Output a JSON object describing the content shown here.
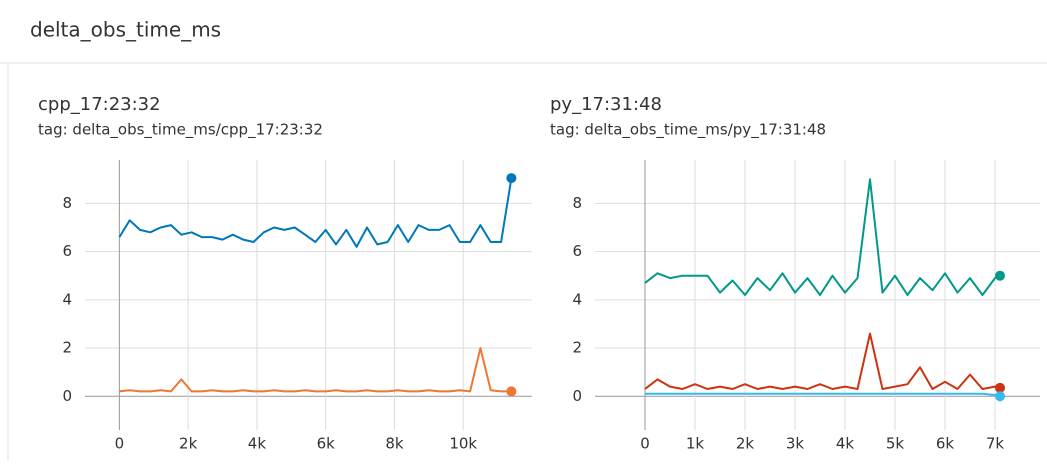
{
  "header": {
    "title": "delta_obs_time_ms"
  },
  "chart_data": [
    {
      "type": "line",
      "title": "cpp_17:23:32",
      "subtitle": "tag: delta_obs_time_ms/cpp_17:23:32",
      "x": [
        0,
        300,
        600,
        900,
        1200,
        1500,
        1800,
        2100,
        2400,
        2700,
        3000,
        3300,
        3600,
        3900,
        4200,
        4500,
        4800,
        5100,
        5400,
        5700,
        6000,
        6300,
        6600,
        6900,
        7200,
        7500,
        7800,
        8100,
        8400,
        8700,
        9000,
        9300,
        9600,
        9900,
        10200,
        10500,
        10800,
        11100,
        11400
      ],
      "series": [
        {
          "color": "#0077bb",
          "values": [
            6.6,
            7.3,
            6.9,
            6.8,
            7.0,
            7.1,
            6.7,
            6.8,
            6.6,
            6.6,
            6.5,
            6.7,
            6.5,
            6.4,
            6.8,
            7.0,
            6.9,
            7.0,
            6.7,
            6.4,
            6.9,
            6.3,
            6.9,
            6.2,
            7.0,
            6.3,
            6.4,
            7.1,
            6.4,
            7.1,
            6.9,
            6.9,
            7.1,
            6.4,
            6.4,
            7.1,
            6.4,
            6.4,
            9.05
          ]
        },
        {
          "color": "#ee7733",
          "values": [
            0.2,
            0.25,
            0.2,
            0.2,
            0.25,
            0.2,
            0.7,
            0.2,
            0.2,
            0.25,
            0.2,
            0.2,
            0.25,
            0.2,
            0.2,
            0.25,
            0.2,
            0.2,
            0.25,
            0.2,
            0.2,
            0.25,
            0.2,
            0.2,
            0.25,
            0.2,
            0.2,
            0.25,
            0.2,
            0.2,
            0.25,
            0.2,
            0.2,
            0.25,
            0.2,
            2.0,
            0.25,
            0.2,
            0.2
          ]
        }
      ],
      "xlim": [
        -1000,
        12000
      ],
      "ylim": [
        -1.4,
        9.8
      ],
      "xticks": [
        0,
        {
          "value": 2000,
          "label": "2k"
        },
        {
          "value": 4000,
          "label": "4k"
        },
        {
          "value": 6000,
          "label": "6k"
        },
        {
          "value": 8000,
          "label": "8k"
        },
        {
          "value": 10000,
          "label": "10k"
        }
      ],
      "yticks": [
        0,
        2,
        4,
        6,
        8
      ],
      "grid": true
    },
    {
      "type": "line",
      "title": "py_17:31:48",
      "subtitle": "tag: delta_obs_time_ms/py_17:31:48",
      "x": [
        0,
        250,
        500,
        750,
        1000,
        1250,
        1500,
        1750,
        2000,
        2250,
        2500,
        2750,
        3000,
        3250,
        3500,
        3750,
        4000,
        4250,
        4500,
        4750,
        5000,
        5250,
        5500,
        5750,
        6000,
        6250,
        6500,
        6750,
        7000,
        7100
      ],
      "series": [
        {
          "color": "#009988",
          "values": [
            4.7,
            5.1,
            4.9,
            5.0,
            5.0,
            5.0,
            4.3,
            4.8,
            4.2,
            4.9,
            4.4,
            5.1,
            4.3,
            4.9,
            4.2,
            5.0,
            4.3,
            4.9,
            9.0,
            4.3,
            5.0,
            4.2,
            4.9,
            4.4,
            5.1,
            4.3,
            4.9,
            4.2,
            4.9,
            5.0
          ]
        },
        {
          "color": "#cc3311",
          "values": [
            0.3,
            0.7,
            0.4,
            0.3,
            0.5,
            0.3,
            0.4,
            0.3,
            0.5,
            0.3,
            0.4,
            0.3,
            0.4,
            0.3,
            0.5,
            0.3,
            0.4,
            0.3,
            2.6,
            0.3,
            0.4,
            0.5,
            1.2,
            0.3,
            0.6,
            0.3,
            0.9,
            0.3,
            0.4,
            0.35
          ]
        },
        {
          "color": "#33bbee",
          "values": [
            0.1,
            0.1,
            0.1,
            0.1,
            0.1,
            0.1,
            0.1,
            0.1,
            0.1,
            0.1,
            0.1,
            0.1,
            0.1,
            0.1,
            0.1,
            0.1,
            0.1,
            0.1,
            0.1,
            0.1,
            0.1,
            0.1,
            0.1,
            0.1,
            0.1,
            0.1,
            0.1,
            0.1,
            0.05,
            0.0
          ]
        }
      ],
      "xlim": [
        -1000,
        7900
      ],
      "ylim": [
        -1.4,
        9.8
      ],
      "xticks": [
        0,
        {
          "value": 1000,
          "label": "1k"
        },
        {
          "value": 2000,
          "label": "2k"
        },
        {
          "value": 3000,
          "label": "3k"
        },
        {
          "value": 4000,
          "label": "4k"
        },
        {
          "value": 5000,
          "label": "5k"
        },
        {
          "value": 6000,
          "label": "6k"
        },
        {
          "value": 7000,
          "label": "7k"
        }
      ],
      "yticks": [
        0,
        2,
        4,
        6,
        8
      ],
      "grid": true
    }
  ]
}
